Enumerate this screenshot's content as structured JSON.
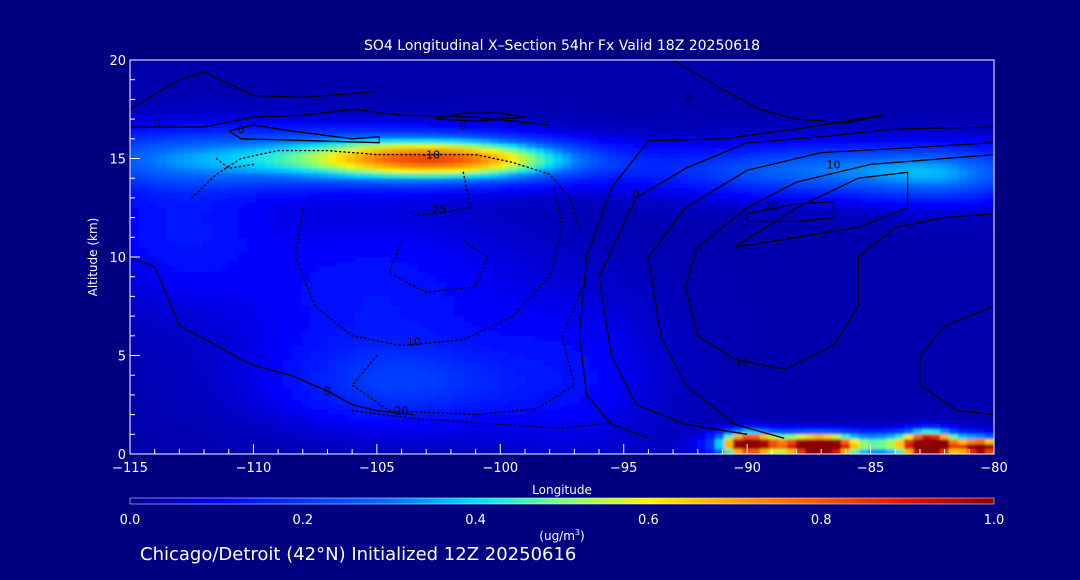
{
  "chart_data": {
    "type": "heatmap",
    "title": "SO4 Longitudinal X–Section 54hr  Fx Valid 18Z 20250618",
    "xlabel": "Longitude",
    "ylabel": "Altitude (km)",
    "xlim": [
      -115,
      -80
    ],
    "ylim": [
      0,
      20
    ],
    "x_ticks": [
      -115,
      -110,
      -105,
      -100,
      -95,
      -90,
      -85,
      -80
    ],
    "x_tick_labels": [
      "−115",
      "−110",
      "−105",
      "−100",
      "−95",
      "−90",
      "−85",
      "−80"
    ],
    "y_ticks": [
      0,
      5,
      10,
      15,
      20
    ],
    "y_tick_labels": [
      "0",
      "5",
      "10",
      "15",
      "20"
    ],
    "colorbar": {
      "min": 0.0,
      "max": 1.0,
      "ticks": [
        0.0,
        0.2,
        0.4,
        0.6,
        0.8,
        1.0
      ],
      "tick_labels": [
        "0.0",
        "0.2",
        "0.4",
        "0.6",
        "0.8",
        "1.0"
      ],
      "units_prefix": "(ug/m",
      "units_sup": "3",
      "units_suffix": ")"
    },
    "concentration_blobs": [
      {
        "lon": -110,
        "alt": 15.0,
        "slon": 6.0,
        "salt": 1.0,
        "value": 0.3
      },
      {
        "lon": -103.5,
        "alt": 15.0,
        "slon": 3.2,
        "salt": 0.7,
        "value": 0.48
      },
      {
        "lon": -100,
        "alt": 14.9,
        "slon": 3.0,
        "salt": 0.7,
        "value": 0.28
      },
      {
        "lon": -86,
        "alt": 14.4,
        "slon": 5.5,
        "salt": 0.9,
        "value": 0.28
      },
      {
        "lon": -82,
        "alt": 14.0,
        "slon": 2.0,
        "salt": 1.0,
        "value": 0.12
      },
      {
        "lon": -113,
        "alt": 11.5,
        "slon": 2.5,
        "salt": 2.5,
        "value": 0.1
      },
      {
        "lon": -105,
        "alt": 8.0,
        "slon": 4.0,
        "salt": 3.0,
        "value": 0.1
      },
      {
        "lon": -104,
        "alt": 3.5,
        "slon": 3.5,
        "salt": 1.5,
        "value": 0.15
      },
      {
        "lon": -97,
        "alt": 4.0,
        "slon": 2.5,
        "salt": 3.0,
        "value": 0.07
      },
      {
        "lon": -88,
        "alt": 0.5,
        "slon": 1.8,
        "salt": 0.4,
        "value": 0.55
      },
      {
        "lon": -83,
        "alt": 0.5,
        "slon": 1.8,
        "salt": 0.4,
        "value": 0.55
      },
      {
        "lon": -90,
        "alt": 0.5,
        "slon": 0.7,
        "salt": 0.4,
        "value": 0.9
      },
      {
        "lon": -87,
        "alt": 0.35,
        "slon": 0.8,
        "salt": 0.35,
        "value": 0.95
      },
      {
        "lon": -82.6,
        "alt": 0.4,
        "slon": 0.6,
        "salt": 0.45,
        "value": 0.95
      },
      {
        "lon": -80.5,
        "alt": 0.3,
        "slon": 0.6,
        "salt": 0.3,
        "value": 0.95
      }
    ],
    "contours": [
      {
        "label": "0",
        "style": "solid",
        "points": [
          [
            -115,
            17.5
          ],
          [
            -113,
            19
          ],
          [
            -112,
            19.4
          ],
          [
            -110,
            18.2
          ],
          [
            -108,
            18.1
          ],
          [
            -105,
            18.4
          ]
        ]
      },
      {
        "label": "0",
        "style": "solid",
        "points": [
          [
            -115,
            16.6
          ],
          [
            -112,
            16.6
          ],
          [
            -110,
            17.1
          ],
          [
            -108,
            17.2
          ],
          [
            -106,
            17.5
          ],
          [
            -104,
            17.2
          ],
          [
            -101,
            17.1
          ],
          [
            -98,
            16.7
          ]
        ]
      },
      {
        "label": "0",
        "style": "solid",
        "points": [
          [
            -111,
            16.4
          ],
          [
            -110,
            16.7
          ],
          [
            -108.5,
            16.4
          ],
          [
            -106,
            16.0
          ],
          [
            -104.9,
            16.1
          ],
          [
            -104.9,
            15.8
          ],
          [
            -107.5,
            15.9
          ],
          [
            -110.5,
            16.0
          ],
          [
            -111,
            16.4
          ]
        ]
      },
      {
        "label": "0",
        "style": "solid",
        "points": [
          [
            -102.6,
            17.0
          ],
          [
            -101.5,
            17.3
          ],
          [
            -100,
            17.3
          ],
          [
            -99,
            17.1
          ],
          [
            -101,
            16.9
          ],
          [
            -102.6,
            17.0
          ]
        ]
      },
      {
        "label": "0",
        "style": "solid",
        "points": [
          [
            -93,
            20
          ],
          [
            -91,
            18.5
          ],
          [
            -89.5,
            17.5
          ],
          [
            -88,
            17.0
          ],
          [
            -86,
            16.8
          ],
          [
            -84.5,
            17.2
          ],
          [
            -88,
            16.5
          ],
          [
            -91,
            16.0
          ],
          [
            -94,
            15.9
          ],
          [
            -95.5,
            13.5
          ],
          [
            -96.5,
            10
          ],
          [
            -96.8,
            6
          ],
          [
            -96.5,
            3
          ],
          [
            -95.5,
            1.5
          ],
          [
            -94,
            0.8
          ]
        ]
      },
      {
        "label": "0",
        "style": "solid",
        "points": [
          [
            -80,
            16.6
          ],
          [
            -84,
            16.5
          ],
          [
            -87,
            16.1
          ],
          [
            -90,
            15.8
          ],
          [
            -92.5,
            14.5
          ],
          [
            -94.5,
            13.0
          ],
          [
            -96,
            9.0
          ],
          [
            -95.5,
            5.0
          ],
          [
            -94.5,
            2.5
          ],
          [
            -92.5,
            1.5
          ],
          [
            -90,
            1.0
          ]
        ]
      },
      {
        "label": "0",
        "style": "solid",
        "points": [
          [
            -80,
            15.8
          ],
          [
            -84,
            15.5
          ],
          [
            -87,
            15.3
          ],
          [
            -90,
            14.4
          ],
          [
            -92.5,
            12.5
          ],
          [
            -94,
            10
          ],
          [
            -93.5,
            6
          ],
          [
            -92.5,
            3.5
          ],
          [
            -90.5,
            1.5
          ],
          [
            -88.5,
            0.8
          ]
        ]
      },
      {
        "label": "10",
        "style": "solid",
        "points": [
          [
            -80,
            15.2
          ],
          [
            -82,
            15.0
          ],
          [
            -85,
            14.7
          ],
          [
            -88,
            13.8
          ],
          [
            -90,
            12.5
          ],
          [
            -92,
            10.5
          ],
          [
            -92.5,
            8.5
          ],
          [
            -92,
            6
          ],
          [
            -90.5,
            4.8
          ],
          [
            -88.5,
            4.3
          ],
          [
            -86.5,
            5.5
          ],
          [
            -85.5,
            7.5
          ],
          [
            -85.5,
            10
          ],
          [
            -84,
            11.5
          ],
          [
            -82,
            12
          ],
          [
            -80,
            12.2
          ]
        ]
      },
      {
        "label": "20",
        "style": "solid",
        "points": [
          [
            -90,
            12.2
          ],
          [
            -88,
            12.7
          ],
          [
            -86.5,
            12.8
          ],
          [
            -86.5,
            12.0
          ],
          [
            -88,
            11.8
          ],
          [
            -90,
            11.8
          ],
          [
            -90,
            12.2
          ]
        ]
      },
      {
        "label": "",
        "style": "solid",
        "points": [
          [
            -90.5,
            10.5
          ],
          [
            -88,
            12.5
          ],
          [
            -85.5,
            14.0
          ],
          [
            -83.5,
            14.3
          ],
          [
            -83.5,
            12.5
          ],
          [
            -85.5,
            11.5
          ],
          [
            -88.5,
            10.9
          ],
          [
            -90.5,
            10.5
          ]
        ]
      },
      {
        "label": "",
        "style": "solid",
        "points": [
          [
            -80,
            7.5
          ],
          [
            -82,
            6.5
          ],
          [
            -83,
            5.0
          ],
          [
            -83,
            3.5
          ],
          [
            -81.5,
            2.2
          ],
          [
            -80,
            2.0
          ]
        ]
      },
      {
        "label": "0",
        "style": "solid",
        "points": [
          [
            -115,
            10
          ],
          [
            -114,
            9.5
          ],
          [
            -113,
            6.5
          ],
          [
            -111.5,
            5.5
          ],
          [
            -110.5,
            4.8
          ],
          [
            -110,
            4.5
          ],
          [
            -108.5,
            4.0
          ],
          [
            -107,
            3.2
          ],
          [
            -106,
            2.5
          ],
          [
            -105,
            2.2
          ],
          [
            -103.5,
            2.0
          ]
        ]
      },
      {
        "label": "-10",
        "style": "dotted",
        "points": [
          [
            -112.5,
            13.0
          ],
          [
            -111.5,
            14.2
          ],
          [
            -110.5,
            15.0
          ],
          [
            -109,
            15.4
          ],
          [
            -107,
            15.4
          ],
          [
            -105,
            15.2
          ],
          [
            -103,
            15.2
          ],
          [
            -101,
            15.2
          ],
          [
            -99.5,
            14.8
          ],
          [
            -98,
            14.2
          ],
          [
            -97.2,
            13.0
          ],
          [
            -96.8,
            11.5
          ]
        ]
      },
      {
        "label": "-20",
        "style": "dotted",
        "points": [
          [
            -111.5,
            15.0
          ],
          [
            -111,
            14.5
          ],
          [
            -110,
            14.7
          ]
        ]
      },
      {
        "label": "-20",
        "style": "dotted",
        "points": [
          [
            -101.5,
            14.3
          ],
          [
            -101.2,
            12.5
          ],
          [
            -102.5,
            12.2
          ],
          [
            -103.5,
            12.1
          ]
        ]
      },
      {
        "label": "-10",
        "style": "dotted",
        "points": [
          [
            -108,
            12.5
          ],
          [
            -108.3,
            10
          ],
          [
            -107.5,
            7.5
          ],
          [
            -106,
            6.0
          ],
          [
            -104,
            5.5
          ],
          [
            -101.5,
            5.8
          ],
          [
            -99.5,
            7.0
          ],
          [
            -98,
            9.0
          ],
          [
            -97.5,
            11.5
          ],
          [
            -97.8,
            13.5
          ]
        ]
      },
      {
        "label": "-20",
        "style": "dotted",
        "points": [
          [
            -104,
            10.8
          ],
          [
            -104.5,
            9.2
          ],
          [
            -103,
            8.2
          ],
          [
            -101,
            8.5
          ],
          [
            -100.5,
            10.0
          ],
          [
            -101.5,
            10.8
          ]
        ]
      },
      {
        "label": "-20",
        "style": "dotted",
        "points": [
          [
            -105,
            5.0
          ],
          [
            -106,
            3.5
          ],
          [
            -104.5,
            2.2
          ],
          [
            -101,
            2.0
          ],
          [
            -98.5,
            2.3
          ],
          [
            -97,
            3.5
          ],
          [
            -97.5,
            6.0
          ],
          [
            -96.5,
            9.0
          ]
        ]
      },
      {
        "label": "-10",
        "style": "dotted",
        "points": [
          [
            -106,
            2.2
          ],
          [
            -103.5,
            1.8
          ],
          [
            -100,
            1.5
          ],
          [
            -97.5,
            1.3
          ],
          [
            -95.5,
            1.6
          ]
        ]
      }
    ],
    "contour_labels": [
      {
        "text": "0",
        "lon": -115.1,
        "alt": 19.2
      },
      {
        "text": "0",
        "lon": -113.9,
        "alt": 16.6
      },
      {
        "text": "0",
        "lon": -110.5,
        "alt": 16.3
      },
      {
        "text": "0",
        "lon": -101.5,
        "alt": 16.5
      },
      {
        "text": "0",
        "lon": -92.4,
        "alt": 17.9
      },
      {
        "text": "-10",
        "lon": -102.8,
        "alt": 15.0
      },
      {
        "text": "0",
        "lon": -94.5,
        "alt": 13.0
      },
      {
        "text": "10",
        "lon": -86.5,
        "alt": 14.5
      },
      {
        "text": "20",
        "lon": -89,
        "alt": 12.4
      },
      {
        "text": "20",
        "lon": -102.5,
        "alt": 12.2
      },
      {
        "text": "0",
        "lon": -107,
        "alt": 3.0
      },
      {
        "text": "10",
        "lon": -103.5,
        "alt": 5.5
      },
      {
        "text": "10",
        "lon": -90.2,
        "alt": 4.5
      },
      {
        "text": "20",
        "lon": -104,
        "alt": 2.0
      }
    ]
  },
  "footer": {
    "location_text": "Chicago/Detroit (42°N) Initialized 12Z 20250616"
  }
}
